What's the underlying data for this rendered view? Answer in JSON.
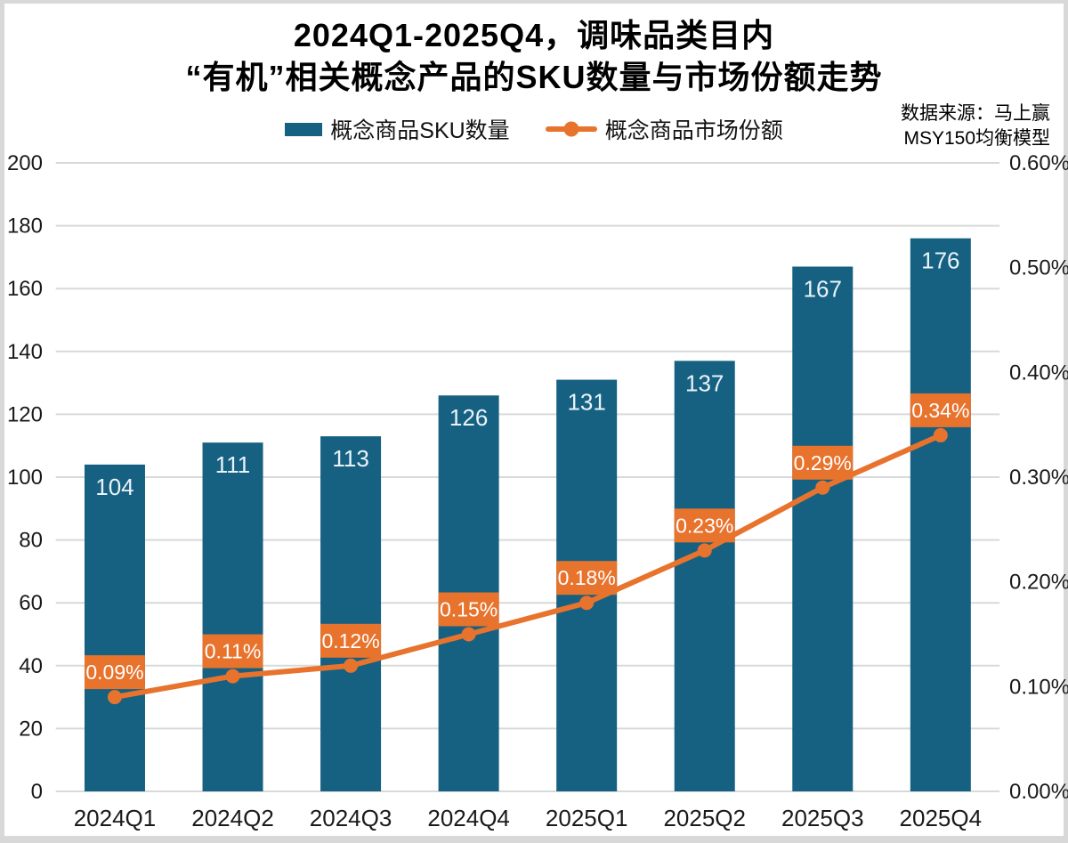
{
  "title": {
    "line1": "2024Q1-2025Q4，调味品类目内",
    "line2": "“有机”相关概念产品的SKU数量与市场份额走势"
  },
  "legend": {
    "bar_label": "概念商品SKU数量",
    "line_label": "概念商品市场份额"
  },
  "source": {
    "line1": "数据来源：马上赢",
    "line2": "MSY150均衡模型"
  },
  "colors": {
    "bar": "#166182",
    "line": "#e8732d",
    "grid": "#d9d9d9",
    "bar_value_text": "#eaf3f8",
    "label_box_text": "#ffffff",
    "axis_text": "#1a1a1a",
    "frame": "#d8d8d8",
    "background": "#ffffff"
  },
  "chart_data": {
    "type": "combo (bar + line, dual axis)",
    "title": "2024Q1-2025Q4，调味品类目内 “有机”相关概念产品的SKU数量与市场份额走势",
    "categories": [
      "2024Q1",
      "2024Q2",
      "2024Q3",
      "2024Q4",
      "2025Q1",
      "2025Q2",
      "2025Q3",
      "2025Q4"
    ],
    "series": [
      {
        "name": "概念商品SKU数量",
        "type": "bar",
        "axis": "left",
        "color": "#166182",
        "values": [
          104,
          111,
          113,
          126,
          131,
          137,
          167,
          176
        ]
      },
      {
        "name": "概念商品市场份额",
        "type": "line",
        "axis": "right",
        "color": "#e8732d",
        "values_percent": [
          0.09,
          0.11,
          0.12,
          0.15,
          0.18,
          0.23,
          0.29,
          0.34
        ],
        "labels": [
          "0.09%",
          "0.11%",
          "0.12%",
          "0.15%",
          "0.18%",
          "0.23%",
          "0.29%",
          "0.34%"
        ]
      }
    ],
    "left_axis": {
      "min": 0,
      "max": 200,
      "step": 20,
      "ticks": [
        "0",
        "20",
        "40",
        "60",
        "80",
        "100",
        "120",
        "140",
        "160",
        "180",
        "200"
      ]
    },
    "right_axis": {
      "min": 0.0,
      "max": 0.6,
      "step": 0.1,
      "ticks": [
        "0.00%",
        "0.10%",
        "0.20%",
        "0.30%",
        "0.40%",
        "0.50%",
        "0.60%"
      ]
    },
    "grid": "horizontal",
    "legend_position": "top-center",
    "data_source": "数据来源：马上赢 MSY150均衡模型"
  }
}
